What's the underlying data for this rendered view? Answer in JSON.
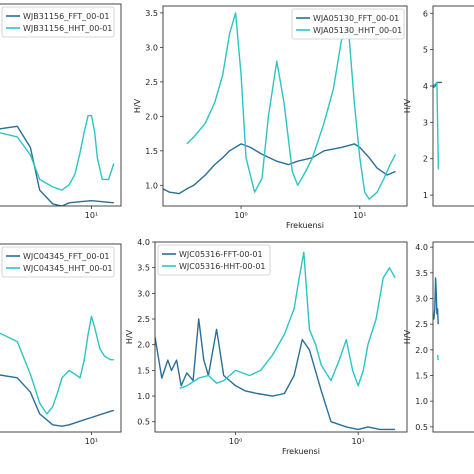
{
  "colors": {
    "fft": "#2a6f97",
    "hht": "#2cc4c4",
    "frame": "#333333",
    "legend_border": "#cccccc"
  },
  "chart_data": [
    {
      "type": "line",
      "xscale": "log",
      "xlim": [
        0.5,
        25
      ],
      "ylim": [
        0.3,
        2.2
      ],
      "title": "",
      "xlabel": "",
      "ylabel": "",
      "yticks": [],
      "yticklabels": [],
      "xticks": [
        10
      ],
      "xticklabels": [
        "10¹"
      ],
      "legend_position": "top-left",
      "series": [
        {
          "name": "WJB31156_FFT_00-01",
          "color": "#2a6f97",
          "x": [
            0.5,
            1,
            1.5,
            2,
            3,
            4,
            5,
            7,
            10,
            14,
            20
          ],
          "y": [
            1.02,
            1.05,
            0.85,
            0.45,
            0.32,
            0.3,
            0.33,
            0.34,
            0.35,
            0.34,
            0.33
          ]
        },
        {
          "name": "WJB31156_HHT_00-01",
          "color": "#2cc4c4",
          "x": [
            0.5,
            1,
            1.5,
            2,
            3,
            4,
            5,
            6,
            7,
            8,
            9,
            10,
            11,
            12,
            14,
            17,
            20
          ],
          "y": [
            1.0,
            0.95,
            0.78,
            0.55,
            0.48,
            0.45,
            0.5,
            0.6,
            0.8,
            1.0,
            1.15,
            1.15,
            1.0,
            0.75,
            0.55,
            0.55,
            0.7
          ]
        }
      ]
    },
    {
      "type": "line",
      "xscale": "log",
      "xlim": [
        0.22,
        25
      ],
      "ylim": [
        0.7,
        3.6
      ],
      "title": "",
      "xlabel": "Frekuensi",
      "ylabel": "H/V",
      "yticks": [
        1.0,
        1.5,
        2.0,
        2.5,
        3.0,
        3.5
      ],
      "yticklabels": [
        "1.0",
        "1.5",
        "2.0",
        "2.5",
        "3.0",
        "3.5"
      ],
      "xticks": [
        1,
        10
      ],
      "xticklabels": [
        "10⁰",
        "10¹"
      ],
      "legend_position": "top-right",
      "series": [
        {
          "name": "WJA05130_FFT_00-01",
          "color": "#2a6f97",
          "x": [
            0.22,
            0.25,
            0.3,
            0.35,
            0.4,
            0.5,
            0.6,
            0.7,
            0.8,
            1.0,
            1.2,
            1.5,
            2,
            2.5,
            3,
            4,
            5,
            7,
            9,
            10,
            12,
            14,
            17,
            20
          ],
          "y": [
            0.95,
            0.9,
            0.88,
            0.95,
            1.0,
            1.15,
            1.3,
            1.4,
            1.5,
            1.6,
            1.55,
            1.45,
            1.35,
            1.3,
            1.35,
            1.4,
            1.5,
            1.55,
            1.6,
            1.55,
            1.4,
            1.25,
            1.15,
            1.2
          ]
        },
        {
          "name": "WJA05130_HHT_00-01",
          "color": "#2cc4c4",
          "x": [
            0.35,
            0.4,
            0.5,
            0.6,
            0.7,
            0.8,
            0.9,
            1.0,
            1.1,
            1.3,
            1.5,
            1.7,
            2.0,
            2.3,
            2.7,
            3.0,
            3.5,
            4,
            5,
            6,
            7,
            8,
            9,
            10,
            11,
            12,
            14,
            16,
            18,
            20
          ],
          "y": [
            1.6,
            1.7,
            1.9,
            2.2,
            2.6,
            3.2,
            3.5,
            2.6,
            1.4,
            0.9,
            1.1,
            2.0,
            2.8,
            2.2,
            1.2,
            1.0,
            1.2,
            1.4,
            1.9,
            2.4,
            3.1,
            3.3,
            2.2,
            1.4,
            0.9,
            0.8,
            0.9,
            1.1,
            1.3,
            1.45
          ]
        }
      ]
    },
    {
      "type": "line",
      "xscale": "log",
      "xlim": [
        0.2,
        25
      ],
      "ylim": [
        0.7,
        6.2
      ],
      "title": "",
      "xlabel": "",
      "ylabel": "H/V",
      "yticks": [
        1,
        2,
        3,
        4,
        5,
        6
      ],
      "yticklabels": [
        "1",
        "2",
        "3",
        "4",
        "5",
        "6"
      ],
      "xticks": [],
      "xticklabels": [],
      "legend_position": "",
      "series": [
        {
          "name": "",
          "color": "#2a6f97",
          "x": [
            0.2,
            0.25,
            0.3,
            0.5
          ],
          "y": [
            3.95,
            4.0,
            4.1,
            4.1
          ]
        },
        {
          "name": "",
          "color": "#2cc4c4",
          "x": [
            0.2,
            0.25,
            0.3,
            0.35
          ],
          "y": [
            4.0,
            4.05,
            4.1,
            1.7
          ]
        }
      ]
    },
    {
      "type": "line",
      "xscale": "log",
      "xlim": [
        0.5,
        25
      ],
      "ylim": [
        0.2,
        2.8
      ],
      "title": "",
      "xlabel": "",
      "ylabel": "",
      "yticks": [],
      "yticklabels": [],
      "xticks": [
        10
      ],
      "xticklabels": [
        "10¹"
      ],
      "legend_position": "top-left",
      "series": [
        {
          "name": "WJC04345_FFT_00-01",
          "color": "#2a6f97",
          "x": [
            0.5,
            1,
            1.5,
            2,
            3,
            4,
            5,
            7,
            10,
            14,
            20
          ],
          "y": [
            1.0,
            0.95,
            0.75,
            0.45,
            0.3,
            0.28,
            0.3,
            0.35,
            0.4,
            0.45,
            0.5
          ]
        },
        {
          "name": "WJC04345_HHT_00-01",
          "color": "#2cc4c4",
          "x": [
            0.5,
            1,
            1.5,
            2,
            2.5,
            3,
            3.5,
            4,
            5,
            6,
            7,
            8,
            9,
            10,
            11,
            13,
            15,
            18,
            20
          ],
          "y": [
            1.6,
            1.45,
            1.0,
            0.6,
            0.45,
            0.55,
            0.75,
            0.95,
            1.05,
            1.0,
            0.95,
            1.2,
            1.55,
            1.8,
            1.65,
            1.35,
            1.25,
            1.2,
            1.2
          ]
        }
      ]
    },
    {
      "type": "line",
      "xscale": "log",
      "xlim": [
        0.22,
        25
      ],
      "ylim": [
        0.3,
        4.0
      ],
      "title": "",
      "xlabel": "Frekuensi",
      "ylabel": "H/V",
      "yticks": [
        0.5,
        1.0,
        1.5,
        2.0,
        2.5,
        3.0,
        3.5,
        4.0
      ],
      "yticklabels": [
        "0.5",
        "1.0",
        "1.5",
        "2.0",
        "2.5",
        "3.0",
        "3.5",
        "4.0"
      ],
      "xticks": [
        1,
        10
      ],
      "xticklabels": [
        "10⁰",
        "10¹"
      ],
      "legend_position": "top-left",
      "series": [
        {
          "name": "WJC05316-FFT-00-01",
          "color": "#2a6f97",
          "x": [
            0.22,
            0.25,
            0.28,
            0.3,
            0.33,
            0.36,
            0.4,
            0.45,
            0.5,
            0.55,
            0.6,
            0.7,
            0.8,
            1.0,
            1.2,
            1.5,
            2,
            2.5,
            3,
            3.5,
            4,
            5,
            6,
            8,
            10,
            12,
            15,
            20
          ],
          "y": [
            2.15,
            1.35,
            1.7,
            1.5,
            1.7,
            1.2,
            1.45,
            1.3,
            2.5,
            1.7,
            1.4,
            2.3,
            1.4,
            1.2,
            1.1,
            1.05,
            1.0,
            1.05,
            1.4,
            2.1,
            1.9,
            1.1,
            0.5,
            0.4,
            0.35,
            0.4,
            0.35,
            0.35
          ]
        },
        {
          "name": "WJC05316-HHT-00-01",
          "color": "#2cc4c4",
          "x": [
            0.35,
            0.4,
            0.5,
            0.6,
            0.7,
            0.8,
            1.0,
            1.3,
            1.6,
            2.0,
            2.5,
            3.0,
            3.3,
            3.6,
            4.0,
            4.5,
            5,
            6,
            7,
            8,
            9,
            10,
            11,
            12,
            14,
            16,
            18,
            20
          ],
          "y": [
            1.15,
            1.2,
            1.35,
            1.4,
            1.25,
            1.3,
            1.5,
            1.4,
            1.5,
            1.8,
            2.2,
            2.7,
            3.3,
            3.8,
            2.3,
            2.0,
            1.6,
            1.3,
            1.7,
            2.1,
            1.5,
            1.2,
            1.5,
            2.0,
            2.5,
            3.3,
            3.5,
            3.3
          ]
        }
      ]
    },
    {
      "type": "line",
      "xscale": "log",
      "xlim": [
        0.2,
        25
      ],
      "ylim": [
        0.4,
        4.1
      ],
      "title": "",
      "xlabel": "",
      "ylabel": "H/V",
      "yticks": [
        0.5,
        1.0,
        1.5,
        2.0,
        2.5,
        3.0,
        3.5,
        4.0
      ],
      "yticklabels": [
        "0.5",
        "1.0",
        "1.5",
        "2.0",
        "2.5",
        "3.0",
        "3.5",
        "4.0"
      ],
      "xticks": [],
      "xticklabels": [],
      "legend_position": "",
      "series": [
        {
          "name": "",
          "color": "#2a6f97",
          "x": [
            0.2,
            0.22,
            0.24,
            0.26,
            0.28,
            0.3,
            0.32,
            0.34
          ],
          "y": [
            2.65,
            2.6,
            2.8,
            3.4,
            3.1,
            2.7,
            2.8,
            2.5
          ]
        },
        {
          "name": "",
          "color": "#2cc4c4",
          "x": [
            0.32,
            0.34
          ],
          "y": [
            1.9,
            1.8
          ]
        }
      ]
    }
  ]
}
